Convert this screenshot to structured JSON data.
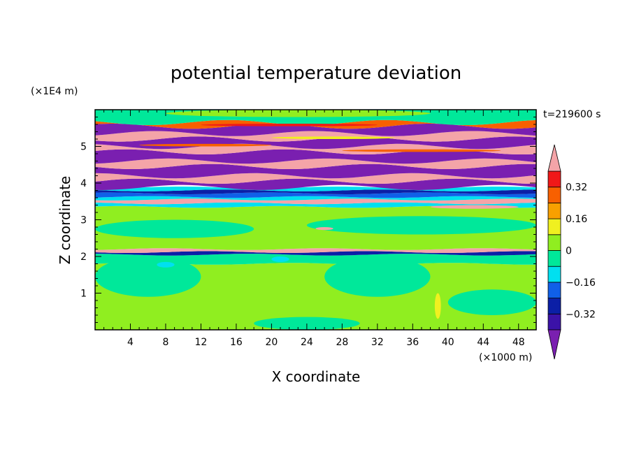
{
  "chart_data": {
    "type": "heatmap",
    "title": "potential temperature deviation",
    "xlabel": "X coordinate",
    "ylabel": "Z coordinate",
    "x_unit": "(×1000 m)",
    "y_unit": "(×1E4 m)",
    "time_label": "t=219600 s",
    "xlim": [
      0,
      50
    ],
    "ylim": [
      0,
      6
    ],
    "x_ticks": [
      "4",
      "8",
      "12",
      "16",
      "20",
      "24",
      "28",
      "32",
      "36",
      "40",
      "44",
      "48"
    ],
    "y_ticks": [
      "1",
      "2",
      "3",
      "4",
      "5"
    ],
    "colorbar": {
      "levels": [
        -0.48,
        -0.4,
        -0.32,
        -0.24,
        -0.16,
        -0.08,
        0,
        0.08,
        0.16,
        0.24,
        0.32,
        0.4,
        0.48
      ],
      "labels": [
        "0.32",
        "0.16",
        "0",
        "−0.16",
        "−0.32"
      ],
      "colors": [
        "#7a1fb0",
        "#3b12a8",
        "#0b1fa6",
        "#1060e8",
        "#00e0f0",
        "#00e89a",
        "#90ee20",
        "#f0f020",
        "#f8a000",
        "#f86000",
        "#f01818",
        "#f4a4a8"
      ]
    },
    "bands": [
      {
        "z0": 0.0,
        "z1": 1.8,
        "color": "#90ee20"
      },
      {
        "z0": 1.8,
        "z1": 2.05,
        "color": "#00e89a"
      },
      {
        "z0": 2.05,
        "z1": 2.12,
        "color": "#0b1fa6"
      },
      {
        "z0": 2.12,
        "z1": 2.2,
        "color": "#f4a4a8"
      },
      {
        "z0": 2.2,
        "z1": 3.35,
        "color": "#90ee20"
      },
      {
        "z0": 3.35,
        "z1": 3.45,
        "color": "#00e0f0"
      },
      {
        "z0": 3.45,
        "z1": 3.55,
        "color": "#f4a4a8"
      },
      {
        "z0": 3.55,
        "z1": 3.62,
        "color": "#00e0f0"
      },
      {
        "z0": 3.62,
        "z1": 3.72,
        "color": "#1060e8"
      },
      {
        "z0": 3.72,
        "z1": 3.8,
        "color": "#0b1fa6"
      },
      {
        "z0": 3.8,
        "z1": 3.88,
        "color": "#00e0f0"
      },
      {
        "z0": 3.88,
        "z1": 4.05,
        "color": "#7a1fb0"
      },
      {
        "z0": 4.05,
        "z1": 4.2,
        "color": "#f4a4a8"
      },
      {
        "z0": 4.2,
        "z1": 4.45,
        "color": "#7a1fb0"
      },
      {
        "z0": 4.45,
        "z1": 4.6,
        "color": "#f4a4a8"
      },
      {
        "z0": 4.6,
        "z1": 4.85,
        "color": "#7a1fb0"
      },
      {
        "z0": 4.85,
        "z1": 5.0,
        "color": "#f4a4a8"
      },
      {
        "z0": 5.0,
        "z1": 5.2,
        "color": "#7a1fb0"
      },
      {
        "z0": 5.2,
        "z1": 5.35,
        "color": "#f4a4a8"
      },
      {
        "z0": 5.35,
        "z1": 5.55,
        "color": "#7a1fb0"
      },
      {
        "z0": 5.55,
        "z1": 5.65,
        "color": "#f86000"
      },
      {
        "z0": 5.65,
        "z1": 6.0,
        "color": "#00e89a"
      }
    ],
    "patches": [
      {
        "x0": 0,
        "x1": 12,
        "z0": 0.9,
        "z1": 2.0,
        "color": "#00e89a"
      },
      {
        "x0": 18,
        "x1": 30,
        "z0": 0.0,
        "z1": 0.35,
        "color": "#00e89a"
      },
      {
        "x0": 26,
        "x1": 38,
        "z0": 0.9,
        "z1": 2.0,
        "color": "#00e89a"
      },
      {
        "x0": 40,
        "x1": 50,
        "z0": 0.4,
        "z1": 1.1,
        "color": "#00e89a"
      },
      {
        "x0": 38.5,
        "x1": 39.2,
        "z0": 0.3,
        "z1": 1.0,
        "color": "#f0f020"
      },
      {
        "x0": 7,
        "x1": 9,
        "z0": 1.7,
        "z1": 1.85,
        "color": "#00e0f0"
      },
      {
        "x0": 20,
        "x1": 22,
        "z0": 1.85,
        "z1": 2.0,
        "color": "#00e0f0"
      },
      {
        "x0": 0,
        "x1": 18,
        "z0": 2.5,
        "z1": 3.0,
        "color": "#00e89a"
      },
      {
        "x0": 24,
        "x1": 50,
        "z0": 2.6,
        "z1": 3.1,
        "color": "#00e89a"
      },
      {
        "x0": 25,
        "x1": 27,
        "z0": 2.72,
        "z1": 2.8,
        "color": "#f4a4a8"
      },
      {
        "x0": 38,
        "x1": 48,
        "z0": 3.3,
        "z1": 3.4,
        "color": "#f4a4a8"
      },
      {
        "x0": 8,
        "x1": 38,
        "z0": 5.8,
        "z1": 6.0,
        "color": "#90ee20"
      },
      {
        "x0": 12,
        "x1": 32,
        "z0": 5.55,
        "z1": 5.62,
        "color": "#f01818"
      },
      {
        "x0": 5,
        "x1": 20,
        "z0": 5.0,
        "z1": 5.07,
        "color": "#f86000"
      },
      {
        "x0": 28,
        "x1": 46,
        "z0": 4.85,
        "z1": 4.92,
        "color": "#f86000"
      },
      {
        "x0": 20,
        "x1": 34,
        "z0": 5.2,
        "z1": 5.27,
        "color": "#f0f020"
      }
    ]
  }
}
